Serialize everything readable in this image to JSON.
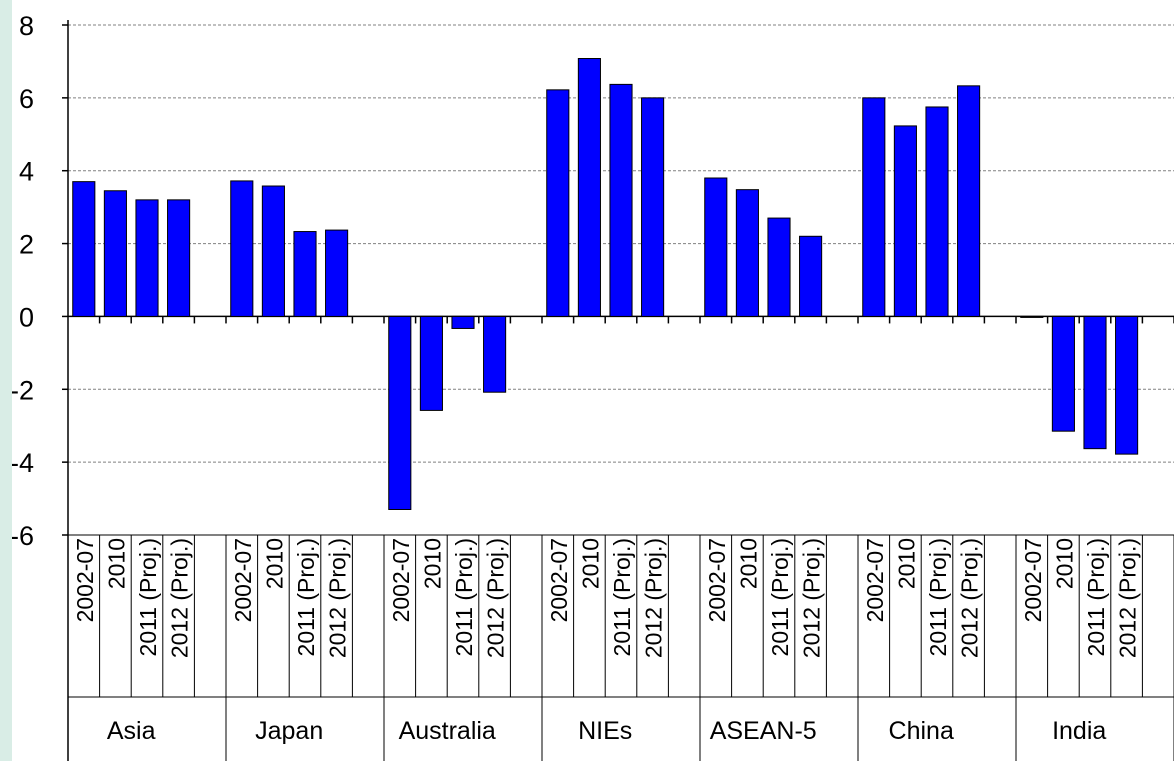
{
  "chart_data": {
    "type": "bar",
    "title": "",
    "xlabel": "",
    "ylabel": "",
    "ylim": [
      -6,
      8
    ],
    "yticks": [
      -6,
      -4,
      -2,
      0,
      2,
      4,
      6,
      8
    ],
    "ytick_labels": [
      "-6",
      "-4",
      "-2",
      "0",
      "2",
      "4",
      "6",
      "8"
    ],
    "grid": true,
    "legend": "none",
    "bar_color": "#0000ff",
    "category_labels": [
      "2002-07",
      "2010",
      "2011 (Proj.)",
      "2012 (Proj.)"
    ],
    "groups": [
      {
        "name": "Asia",
        "values": [
          3.7,
          3.45,
          3.2,
          3.2
        ]
      },
      {
        "name": "Japan",
        "values": [
          3.72,
          3.58,
          2.33,
          2.37
        ]
      },
      {
        "name": "Australia",
        "values": [
          -5.3,
          -2.58,
          -0.33,
          -2.08
        ]
      },
      {
        "name": "NIEs",
        "values": [
          6.22,
          7.08,
          6.37,
          6.0
        ]
      },
      {
        "name": "ASEAN-5",
        "values": [
          3.8,
          3.48,
          2.7,
          2.2
        ]
      },
      {
        "name": "China",
        "values": [
          6.0,
          5.23,
          5.75,
          6.33
        ]
      },
      {
        "name": "India",
        "values": [
          -0.02,
          -3.15,
          -3.63,
          -3.78
        ]
      }
    ]
  }
}
